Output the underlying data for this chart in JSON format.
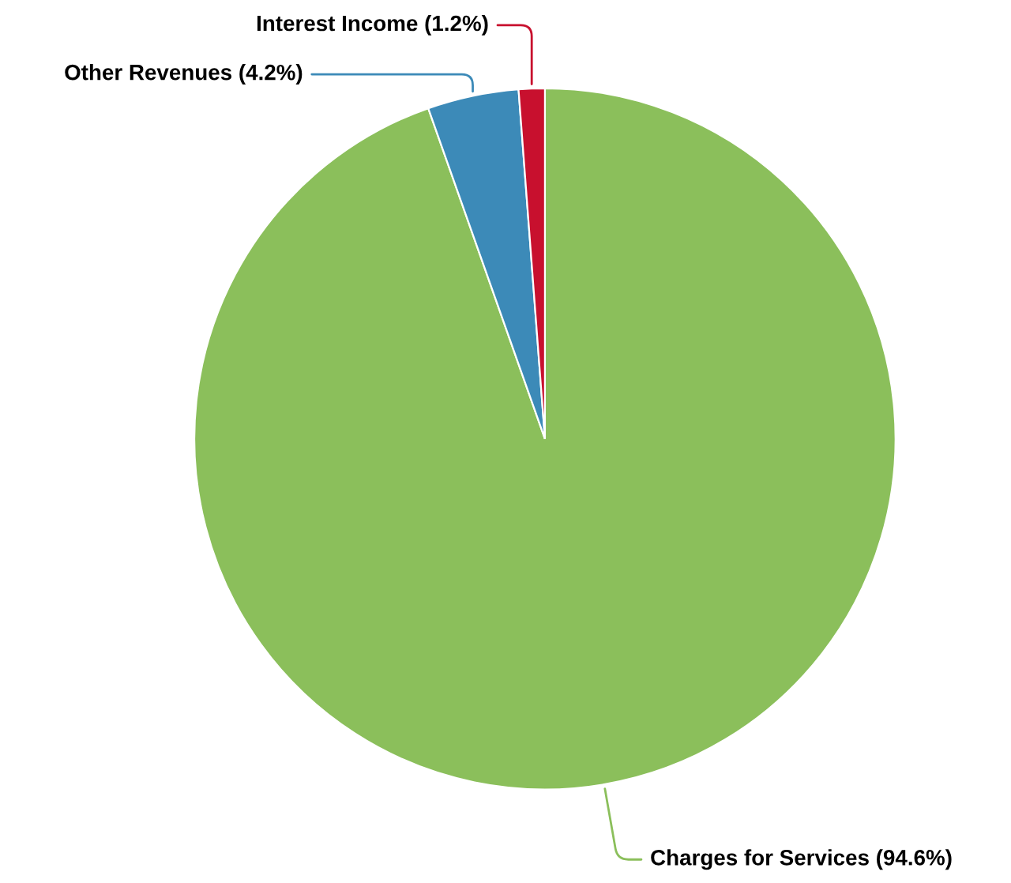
{
  "chart_data": {
    "type": "pie",
    "categories": [
      "Charges for Services",
      "Other Revenues",
      "Interest Income"
    ],
    "values": [
      94.6,
      4.2,
      1.2
    ],
    "colors": [
      "#8bbf5b",
      "#3c8ab8",
      "#c8102e"
    ],
    "value_labels": [
      "(94.6%)",
      "(4.2%)",
      "(1.2%)"
    ],
    "legend": false
  }
}
